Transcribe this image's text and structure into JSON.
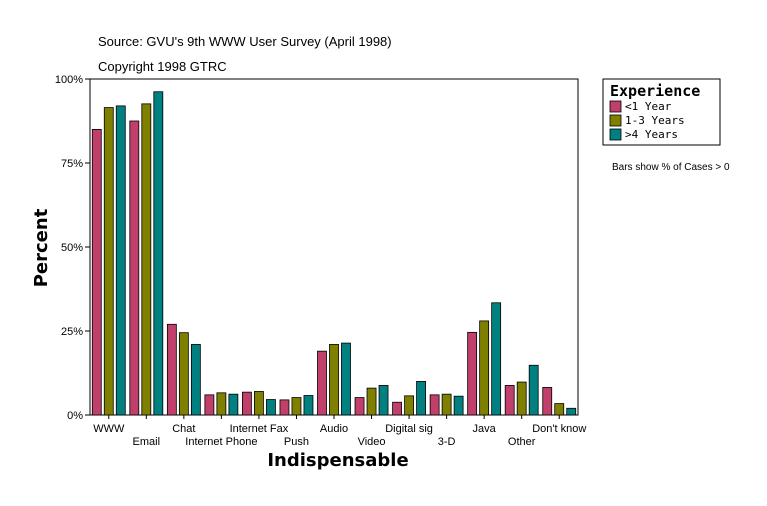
{
  "chart_data": {
    "type": "bar",
    "title_lines": [
      "Source: GVU's 9th WWW User Survey (April 1998)",
      "Copyright 1998 GTRC"
    ],
    "xlabel": "Indispensable",
    "ylabel": "Percent",
    "ylim": [
      0,
      100
    ],
    "yticks": [
      0,
      25,
      50,
      75,
      100
    ],
    "ytick_labels": [
      "0%",
      "25%",
      "50%",
      "75%",
      "100%"
    ],
    "categories": [
      "WWW",
      "Email",
      "Chat",
      "Internet Phone",
      "Internet Fax",
      "Push",
      "Audio",
      "Video",
      "Digital sig",
      "3-D",
      "Java",
      "Other",
      "Don't know"
    ],
    "series": [
      {
        "name": "<1 Year",
        "color": "#C0406B",
        "values": [
          85,
          87.5,
          27,
          6,
          6.8,
          4.5,
          19,
          5.2,
          3.8,
          6,
          24.6,
          8.8,
          8.2
        ]
      },
      {
        "name": "1-3 Years",
        "color": "#808000",
        "values": [
          91.5,
          92.6,
          24.5,
          6.6,
          7,
          5.2,
          21,
          8,
          5.7,
          6.2,
          28,
          9.8,
          3.4
        ]
      },
      {
        "name": "4+ Years",
        "color": "#008080",
        "values": [
          92,
          96.2,
          21,
          6.2,
          4.6,
          5.8,
          21.4,
          8.8,
          10,
          5.6,
          33.4,
          14.8,
          2
        ]
      }
    ],
    "legend": {
      "title": "Experience",
      "labels": [
        "<1 Year",
        "1-3 Years",
        ">4 Years"
      ],
      "position": "top-right"
    },
    "note": "Bars show % of Cases > 0"
  }
}
